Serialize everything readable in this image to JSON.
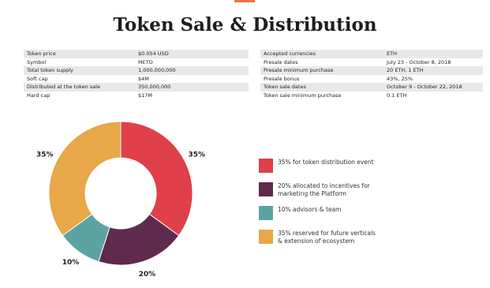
{
  "title": "Token Sale & Distribution",
  "left_table": {
    "rows": [
      [
        "Token price",
        "$0.054 USD"
      ],
      [
        "Symbol",
        "METO"
      ],
      [
        "Total token supply",
        "1,000,000,000"
      ],
      [
        "Soft cap",
        "$4M"
      ],
      [
        "Distributed at the token sale",
        "350,000,000"
      ],
      [
        "Hard cap",
        "$17M"
      ]
    ]
  },
  "right_table": {
    "rows": [
      [
        "Accepted currencies",
        "ETH"
      ],
      [
        "Presale dates",
        "July 23 - October 8, 2018"
      ],
      [
        "Presale minimum purchase",
        "20 ETH, 1 ETH"
      ],
      [
        "Presale bonus",
        "43%, 25%"
      ],
      [
        "Token sale dates",
        "October 9 - October 22, 2018"
      ],
      [
        "Token sale minimum purchase",
        "0.1 ETH"
      ]
    ]
  },
  "chart_data": {
    "type": "donut",
    "categories": [
      "35% for token distribution event",
      "20% allocated to incentives for marketing the Platform",
      "10% advisors & team",
      "35% reserved for future verticals & extension of ecosystem"
    ],
    "values": [
      35,
      20,
      10,
      35
    ],
    "value_labels": [
      "35%",
      "20%",
      "10%",
      "35%"
    ],
    "colors": [
      "#e0404a",
      "#5e2b4f",
      "#5ea3a3",
      "#e8a748"
    ]
  }
}
